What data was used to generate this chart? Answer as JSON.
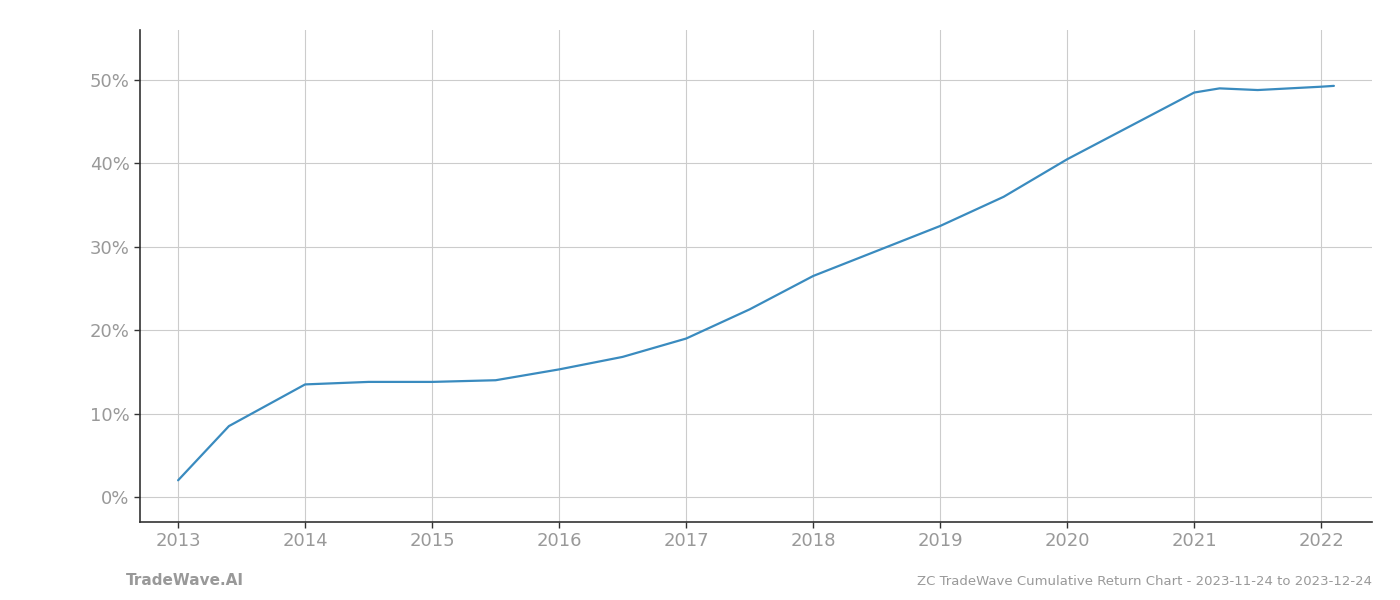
{
  "x_values": [
    2013.0,
    2013.4,
    2014.0,
    2014.5,
    2015.0,
    2015.5,
    2016.0,
    2016.5,
    2017.0,
    2017.5,
    2018.0,
    2018.5,
    2019.0,
    2019.5,
    2020.0,
    2020.5,
    2021.0,
    2021.2,
    2021.5,
    2022.0,
    2022.1
  ],
  "y_values": [
    2.0,
    8.5,
    13.5,
    13.8,
    13.8,
    14.0,
    15.3,
    16.8,
    19.0,
    22.5,
    26.5,
    29.5,
    32.5,
    36.0,
    40.5,
    44.5,
    48.5,
    49.0,
    48.8,
    49.2,
    49.3
  ],
  "line_color": "#3a8bbf",
  "line_width": 1.6,
  "background_color": "#ffffff",
  "grid_color": "#cccccc",
  "title": "ZC TradeWave Cumulative Return Chart - 2023-11-24 to 2023-12-24",
  "footer_left": "TradeWave.AI",
  "xlim": [
    2012.7,
    2022.4
  ],
  "ylim": [
    -3,
    56
  ],
  "yticks": [
    0,
    10,
    20,
    30,
    40,
    50
  ],
  "xticks": [
    2013,
    2014,
    2015,
    2016,
    2017,
    2018,
    2019,
    2020,
    2021,
    2022
  ],
  "tick_color": "#999999",
  "spine_color": "#333333",
  "grid_line_color": "#cccccc",
  "title_fontsize": 9.5,
  "tick_fontsize": 13,
  "footer_fontsize": 11
}
